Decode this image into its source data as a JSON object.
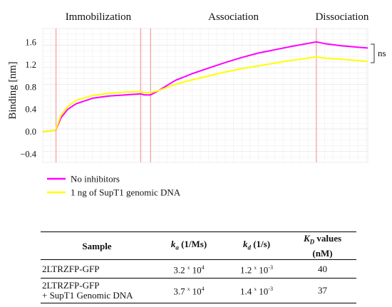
{
  "chart_data": {
    "type": "line",
    "phases": [
      {
        "label": "Immobilization",
        "x_start": 0.8,
        "x_end": 5.9
      },
      {
        "label": "Association",
        "x_start": 6.5,
        "x_end": 16.5
      },
      {
        "label": "Dissociation",
        "x_start": 16.5,
        "x_end": 19.6
      }
    ],
    "phase_boundaries": [
      0.8,
      5.9,
      6.5,
      16.5
    ],
    "ylabel": "Binding [nm]",
    "y_ticks": [
      "1.6",
      "1.2",
      "0.8",
      "0.4",
      "0.0",
      "−0.4"
    ],
    "y_tick_values": [
      1.6,
      1.2,
      0.8,
      0.4,
      0.0,
      -0.4
    ],
    "ylim": [
      -0.55,
      1.85
    ],
    "xlim": [
      0,
      19.6
    ],
    "grid": true,
    "legend_position": "bottom-left",
    "significance_label": "ns",
    "series": [
      {
        "name": "No inhibitors",
        "color": "#ff00ff",
        "points": [
          [
            0,
            0
          ],
          [
            0.7,
            0.02
          ],
          [
            0.8,
            0.04
          ],
          [
            1.1,
            0.25
          ],
          [
            1.5,
            0.4
          ],
          [
            2,
            0.5
          ],
          [
            3,
            0.6
          ],
          [
            4,
            0.64
          ],
          [
            5,
            0.66
          ],
          [
            5.9,
            0.68
          ],
          [
            6.1,
            0.66
          ],
          [
            6.5,
            0.66
          ],
          [
            7,
            0.74
          ],
          [
            8,
            0.92
          ],
          [
            9,
            1.04
          ],
          [
            10,
            1.14
          ],
          [
            11,
            1.24
          ],
          [
            12,
            1.33
          ],
          [
            13,
            1.41
          ],
          [
            14,
            1.47
          ],
          [
            15,
            1.53
          ],
          [
            16.5,
            1.61
          ],
          [
            17,
            1.58
          ],
          [
            18,
            1.54
          ],
          [
            19.6,
            1.5
          ]
        ]
      },
      {
        "name": "1 ng of SupT1 genomic DNA",
        "color": "#ffff00",
        "points": [
          [
            0,
            0
          ],
          [
            0.7,
            0.02
          ],
          [
            0.8,
            0.05
          ],
          [
            1.1,
            0.3
          ],
          [
            1.5,
            0.45
          ],
          [
            2,
            0.56
          ],
          [
            3,
            0.65
          ],
          [
            4,
            0.69
          ],
          [
            5,
            0.71
          ],
          [
            5.9,
            0.72
          ],
          [
            6.1,
            0.7
          ],
          [
            6.5,
            0.7
          ],
          [
            7,
            0.74
          ],
          [
            8,
            0.85
          ],
          [
            9,
            0.93
          ],
          [
            10,
            1.0
          ],
          [
            11,
            1.07
          ],
          [
            12,
            1.13
          ],
          [
            13,
            1.18
          ],
          [
            14,
            1.23
          ],
          [
            15,
            1.28
          ],
          [
            16.5,
            1.34
          ],
          [
            17,
            1.32
          ],
          [
            18,
            1.3
          ],
          [
            19.6,
            1.26
          ]
        ]
      }
    ]
  },
  "table": {
    "headers": {
      "sample": "Sample",
      "ka_symbol": "k",
      "ka_sub": "a",
      "ka_unit": "(1/Ms)",
      "kd_symbol": "k",
      "kd_sub": "d",
      "kd_unit": "(1/s)",
      "KD_symbol": "K",
      "KD_sub": "D",
      "KD_label": "values",
      "KD_unit": "(nM)"
    },
    "rows": [
      {
        "sample_line1": "2LTRZFP-GFP",
        "sample_line2": "",
        "ka_mant": "3.2",
        "ka_exp": "4",
        "kd_mant": "1.2",
        "kd_exp": "-3",
        "KD": "40"
      },
      {
        "sample_line1": "2LTRZFP-GFP",
        "sample_line2": "+ SupT1 Genomic DNA",
        "ka_mant": "3.7",
        "ka_exp": "4",
        "kd_mant": "1.4",
        "kd_exp": "-3",
        "KD": "37"
      }
    ],
    "times_symbol": "x",
    "base": "10"
  }
}
